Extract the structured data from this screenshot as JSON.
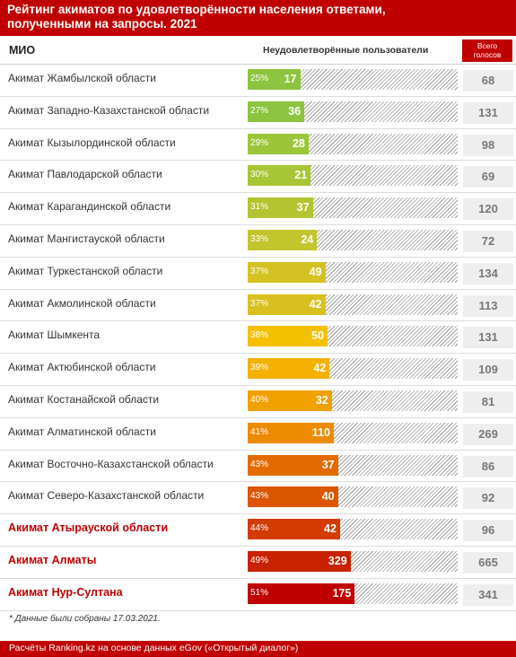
{
  "header": {
    "title_line1": "Рейтинг акиматов по удовлетворённости населения ответами,",
    "title_line2": "полученными на запросы. 2021"
  },
  "columns": {
    "mio": "МИО",
    "unsatisfied": "Неудовлетворённые пользователи",
    "total_line1": "Всего",
    "total_line2": "голосов"
  },
  "chart_data": {
    "type": "bar",
    "orientation": "horizontal",
    "title": "Рейтинг акиматов по удовлетворённости населения ответами, полученными на запросы. 2021",
    "xlabel": "Неудовлетворённые пользователи",
    "ylabel": "МИО",
    "xlim": [
      0,
      100
    ],
    "categories": [
      "Акимат Жамбылской области",
      "Акимат Западно-Казахстанской области",
      "Акимат Кызылординской области",
      "Акимат Павлодарской области",
      "Акимат Карагандинской области",
      "Акимат Мангистауской области",
      "Акимат Туркестанской области",
      "Акимат Акмолинской области",
      "Акимат Шымкента",
      "Акимат Актюбинской области",
      "Акимат Костанайской области",
      "Акимат Алматинской области",
      "Акимат Восточно-Казахстанской области",
      "Акимат Северо-Казахстанской области",
      "Акимат Атырауской области",
      "Акимат Алматы",
      "Акимат Нур-Султана"
    ],
    "percent": [
      25,
      27,
      29,
      30,
      31,
      33,
      37,
      37,
      38,
      39,
      40,
      41,
      43,
      43,
      44,
      49,
      51
    ],
    "percent_labels": [
      "25%",
      "27%",
      "29%",
      "30%",
      "31%",
      "33%",
      "37%",
      "37%",
      "38%",
      "39%",
      "40%",
      "41%",
      "43%",
      "43%",
      "44%",
      "49%",
      "51%"
    ],
    "unsatisfied": [
      17,
      36,
      28,
      21,
      37,
      24,
      49,
      42,
      50,
      42,
      32,
      110,
      37,
      40,
      42,
      329,
      175
    ],
    "total_votes": [
      68,
      131,
      98,
      69,
      120,
      72,
      134,
      113,
      131,
      109,
      81,
      269,
      86,
      92,
      96,
      665,
      341
    ],
    "highlighted": [
      false,
      false,
      false,
      false,
      false,
      false,
      false,
      false,
      false,
      false,
      false,
      false,
      false,
      false,
      true,
      true,
      true
    ],
    "colors": [
      "#8cc43f",
      "#8cc43f",
      "#9cc63a",
      "#a8c536",
      "#b4c431",
      "#c2c52c",
      "#d4c223",
      "#d9c01e",
      "#f5c000",
      "#f4b100",
      "#f0a100",
      "#ec8b00",
      "#e36a00",
      "#dc5500",
      "#d33c00",
      "#c92200",
      "#c00000"
    ]
  },
  "note": "* Данные были собраны 17.03.2021.",
  "footer": "Расчёты Ranking.kz на основе данных eGov («Открытый диалог»)"
}
